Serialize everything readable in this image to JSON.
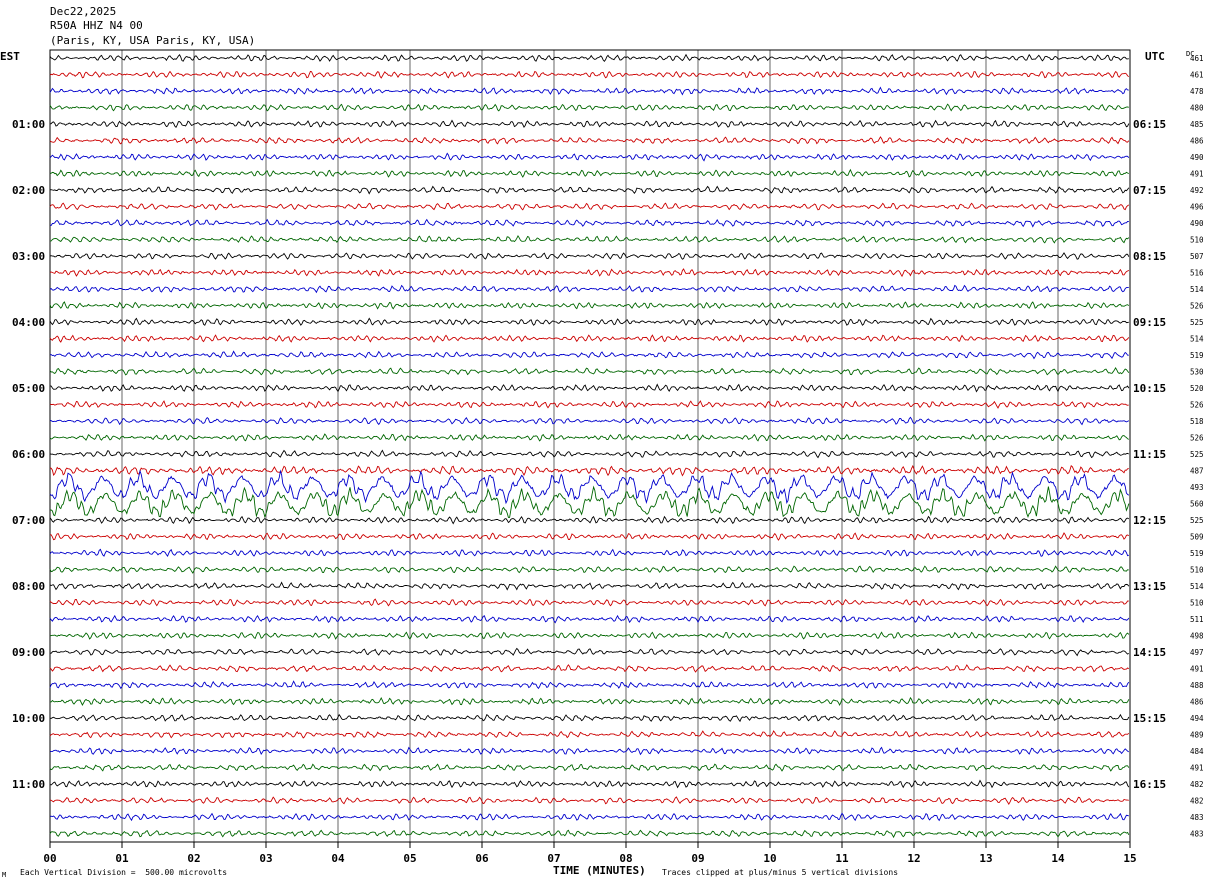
{
  "header": {
    "date": "Dec22,2025",
    "station": "R50A HHZ N4 00",
    "location": "(Paris, KY, USA Paris, KY, USA)"
  },
  "left_timezone": "EST",
  "right_timezone": "UTC",
  "dc_label": "DC",
  "footer": {
    "scale_note": "Each Vertical Division =  500.00 microvolts",
    "xlabel": "TIME (MINUTES)",
    "clip_note": "Traces clipped at plus/minus 5 vertical divisions",
    "corner_mark": "M"
  },
  "colors": {
    "trace_cycle": [
      "#000000",
      "#cc0000",
      "#0000cc",
      "#006600"
    ],
    "grid": "#000000"
  },
  "chart_data": {
    "type": "line",
    "title": "R50A HHZ N4 00",
    "xlabel": "TIME (MINUTES)",
    "xlim": [
      0,
      15
    ],
    "x_ticks": [
      "00",
      "01",
      "02",
      "03",
      "04",
      "05",
      "06",
      "07",
      "08",
      "09",
      "10",
      "11",
      "12",
      "13",
      "14",
      "15"
    ],
    "left_hour_labels": [
      "01:00",
      "02:00",
      "03:00",
      "04:00",
      "05:00",
      "06:00",
      "07:00",
      "08:00",
      "09:00",
      "10:00",
      "11:00"
    ],
    "right_hour_labels": [
      "06:15",
      "07:15",
      "08:15",
      "09:15",
      "10:15",
      "11:15",
      "12:15",
      "13:15",
      "14:15",
      "15:15",
      "16:15"
    ],
    "dc_offsets": [
      461,
      461,
      478,
      480,
      485,
      486,
      490,
      491,
      492,
      496,
      490,
      510,
      507,
      516,
      514,
      526,
      525,
      514,
      519,
      530,
      520,
      526,
      518,
      526,
      525,
      487,
      493,
      560,
      525,
      509,
      519,
      510,
      514,
      510,
      511,
      498,
      497,
      491,
      488,
      486,
      494,
      489,
      484,
      491,
      482,
      482,
      483,
      483
    ],
    "trace_amplitude_divisions": [
      1,
      1,
      1,
      1,
      1,
      1,
      1,
      1,
      1,
      1,
      1,
      1,
      1,
      1,
      1,
      1,
      1,
      1,
      1,
      1,
      1,
      1,
      1,
      1,
      1,
      1.4,
      2.5,
      2.5,
      1,
      1,
      1,
      1,
      1,
      1,
      1,
      1,
      1,
      1,
      1,
      1,
      1,
      1,
      1,
      1,
      1,
      1,
      1,
      1
    ],
    "traces_per_hour": 4,
    "clip_divisions": 5
  }
}
